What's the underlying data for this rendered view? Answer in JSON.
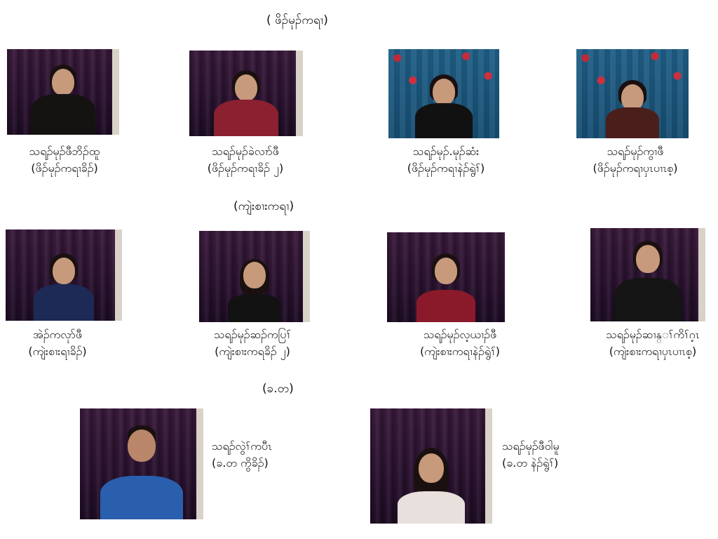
{
  "sections": {
    "top_heading": "( ဖိၣ်မုၣ်ကရၢ)",
    "middle_heading": "(ကျဲးစၢးကရၢ)",
    "bottom_heading": "(ခ.တ)"
  },
  "people": [
    {
      "name": "သရၣ်မုၣ်ဖီဘိၣ်ထူ",
      "role": "(ဖိၣ်မုၣ်ကရၢခိၣ်)"
    },
    {
      "name": "သရၣ်မုၣ်ခဲလၢာ်ဖီ",
      "role": "(ဖိၣ်မုၣ်ကရၢခိၣ် ၂)"
    },
    {
      "name": "သရၣ်မုၣ်.မုၣ်ဆံး",
      "role": "(ဖိၣ်မုၣ်ကရၢနဲၣ်ရွဲၢ်)"
    },
    {
      "name": "သရၣ်မုၣ်ကွၢဖီ",
      "role": "(ဖိၣ်မုၣ်ကရၢပှၤပၢၤစ့)"
    },
    {
      "name": "အဲၣ်ကလုာ်ဖီ",
      "role": "(ကျဲးစၢးရၢခိၣ်)"
    },
    {
      "name": "သရၣ်မုၣ်ဆၣ်ကပြၢ်",
      "role": "(ကျဲးစၢးကရခိၣ် ၂)"
    },
    {
      "name": "သရၣ်မုၣ်လ့ယၢၣ်ဖီ",
      "role": "(ကျဲးစၢးကရၢနဲၣ်ရွဲၢ်)"
    },
    {
      "name": "သရၣ်မုၣ်ဆၢန္ၢ်ကိၢ်ဂ့ၤ",
      "role": "(ကျဲးစၢးကရၢပှၤပၢၤစ့)"
    },
    {
      "name": "သရၣ်လွဲၢ်ကပီၤ",
      "role": "(ခ.တ ကွိခိၣ်)"
    },
    {
      "name": "သရၣ်မုၣ်ဖီဝါမူ",
      "role": "(ခ.တ နဲၣ်ရွဲၢ်)"
    }
  ]
}
